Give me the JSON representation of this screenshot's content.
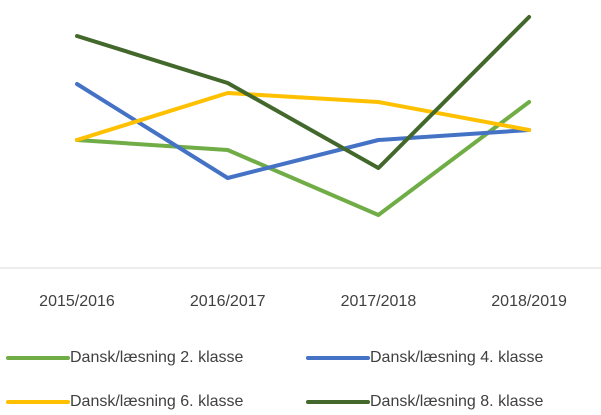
{
  "chart_data": {
    "type": "line",
    "categories": [
      "2015/2016",
      "2016/2017",
      "2017/2018",
      "2018/2019"
    ],
    "series": [
      {
        "name": "Dansk/læsning 2. klasse",
        "color": "#70ad47",
        "values": [
          128,
          118,
          53,
          166
        ]
      },
      {
        "name": "Dansk/læsning 4. klasse",
        "color": "#4472c4",
        "values": [
          184,
          90,
          128,
          138
        ]
      },
      {
        "name": "Dansk/læsning 6. klasse",
        "color": "#ffc000",
        "values": [
          128,
          175,
          166,
          138
        ]
      },
      {
        "name": "Dansk/læsning 8. klasse",
        "color": "#43682b",
        "values": [
          232,
          185,
          100,
          251
        ]
      }
    ],
    "ylim": [
      0,
      260
    ],
    "legend": "bottom"
  }
}
